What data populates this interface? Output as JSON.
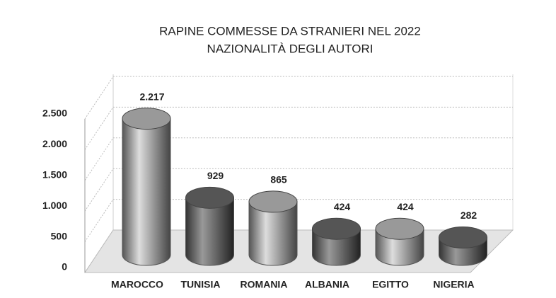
{
  "chart_data": {
    "type": "bar3d",
    "title": "RAPINE COMMESSE DA STRANIERI NEL 2022",
    "subtitle": "NAZIONALITÀ  DEGLI AUTORI",
    "categories": [
      "MAROCCO",
      "TUNISIA",
      "ROMANIA",
      "ALBANIA",
      "EGITTO",
      "NIGERIA"
    ],
    "values": [
      2217,
      929,
      865,
      424,
      424,
      282
    ],
    "value_labels": [
      "2.217",
      "929",
      "865",
      "424",
      "424",
      "282"
    ],
    "color": "#a0a0a0",
    "ylim": [
      0,
      2500
    ],
    "yticks": [
      0,
      500,
      {
        "value": 1000,
        "label": "1.000"
      },
      {
        "value": 1500,
        "label": "1.500"
      },
      {
        "value": 2000,
        "label": "2.000"
      },
      {
        "value": 2500,
        "label": "2.500"
      }
    ],
    "grid": true
  }
}
